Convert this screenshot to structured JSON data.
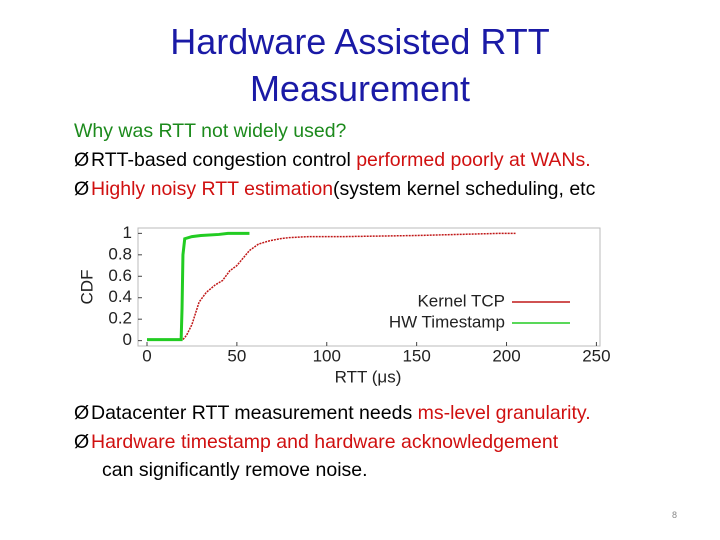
{
  "title": "Hardware Assisted RTT Measurement",
  "intro": "Why was RTT not widely used?",
  "top_bullets": [
    [
      "RTT-based congestion control ",
      "performed poorly at WANs."
    ],
    [
      "Highly noisy RTT estimation",
      "(system kernel scheduling, etc"
    ]
  ],
  "bottom_bullets": [
    [
      "Datacenter RTT measurement needs ",
      "ms-level granularity."
    ],
    [
      "Hardware timestamp and hardware acknowledgement",
      "can significantly remove noise."
    ]
  ],
  "page_number": "8",
  "chart_data": {
    "type": "line",
    "xlabel": "RTT (μs)",
    "ylabel": "CDF",
    "xlim": [
      -5,
      252
    ],
    "ylim": [
      -0.05,
      1.05
    ],
    "xticks": [
      0,
      50,
      100,
      150,
      200,
      250
    ],
    "yticks": [
      0,
      0.2,
      0.4,
      0.6,
      0.8,
      1
    ],
    "legend": "lower right",
    "series": [
      {
        "name": "Kernel TCP",
        "color": "#c01818",
        "x": [
          0,
          20,
          22,
          25,
          29,
          33,
          38,
          42,
          46,
          50,
          54,
          57,
          62,
          68,
          74,
          79,
          90,
          110,
          150,
          196,
          205
        ],
        "values": [
          0.01,
          0.01,
          0.05,
          0.15,
          0.36,
          0.45,
          0.52,
          0.56,
          0.65,
          0.7,
          0.78,
          0.84,
          0.9,
          0.93,
          0.95,
          0.96,
          0.97,
          0.97,
          0.98,
          1.0,
          1.0
        ]
      },
      {
        "name": "HW Timestamp",
        "color": "#22cc22",
        "x": [
          0,
          19,
          19.5,
          20,
          21,
          25,
          30,
          40,
          45,
          57
        ],
        "values": [
          0.01,
          0.01,
          0.3,
          0.8,
          0.95,
          0.97,
          0.98,
          0.99,
          1.0,
          1.0
        ]
      }
    ]
  }
}
